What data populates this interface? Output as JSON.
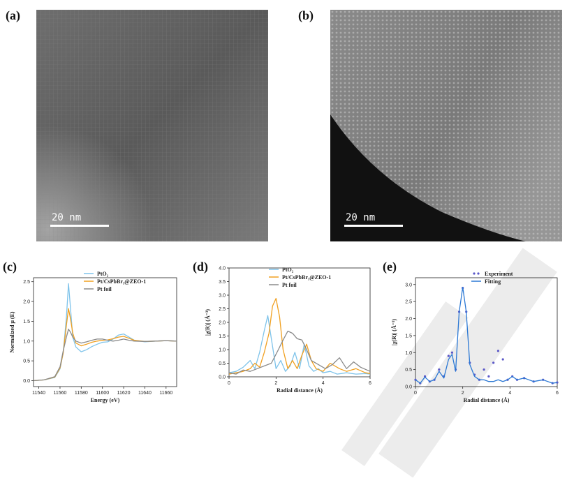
{
  "panels": {
    "a": {
      "label": "(a)",
      "scalebar": "20 nm"
    },
    "b": {
      "label": "(b)",
      "scalebar": "20 nm"
    },
    "c": {
      "label": "(c)"
    },
    "d": {
      "label": "(d)"
    },
    "e": {
      "label": "(e)"
    }
  },
  "colors": {
    "pto2": "#7ec3ea",
    "sample": "#f0a020",
    "foil": "#8a8a8a",
    "experiment": "#5b58c8",
    "fitting": "#2b78d4"
  },
  "chart_data": [
    {
      "type": "line",
      "xlabel": "Energy (eV)",
      "ylabel": "Normalized μ (E)",
      "xlim": [
        11535,
        11670
      ],
      "ylim": [
        -0.15,
        2.6
      ],
      "xticks": [
        11540,
        11560,
        11580,
        11600,
        11620,
        11640,
        11660
      ],
      "yticks": [
        0.0,
        0.5,
        1.0,
        1.5,
        2.0,
        2.5
      ],
      "xtick_labels": [
        "11540",
        "11560",
        "11580",
        "11600",
        "11620",
        "11640",
        "11660"
      ],
      "ytick_labels": [
        "0.0",
        "0.5",
        "1.0",
        "1.5",
        "2.0",
        "2.5"
      ],
      "legend": [
        "PtO₂",
        "Pt/CsPbBr₃@ZEO-1",
        "Pt foil"
      ],
      "legend_position": "top-right",
      "series": [
        {
          "name": "PtO₂",
          "x": [
            11535,
            11545,
            11555,
            11560,
            11563,
            11566,
            11568,
            11570,
            11572,
            11575,
            11580,
            11585,
            11590,
            11595,
            11600,
            11605,
            11610,
            11615,
            11620,
            11625,
            11630,
            11640,
            11650,
            11660,
            11670
          ],
          "y": [
            0.0,
            0.02,
            0.08,
            0.3,
            0.7,
            1.6,
            2.45,
            1.8,
            1.1,
            0.85,
            0.73,
            0.78,
            0.86,
            0.92,
            0.97,
            0.98,
            1.05,
            1.15,
            1.18,
            1.1,
            1.02,
            0.98,
            1.0,
            1.01,
            1.0
          ]
        },
        {
          "name": "Pt/CsPbBr₃@ZEO-1",
          "x": [
            11535,
            11545,
            11555,
            11560,
            11563,
            11566,
            11568,
            11570,
            11572,
            11575,
            11580,
            11585,
            11590,
            11595,
            11600,
            11605,
            11610,
            11615,
            11620,
            11625,
            11630,
            11640,
            11650,
            11660,
            11670
          ],
          "y": [
            0.0,
            0.02,
            0.09,
            0.32,
            0.7,
            1.4,
            1.82,
            1.55,
            1.2,
            0.95,
            0.88,
            0.92,
            0.97,
            1.0,
            1.02,
            1.03,
            1.06,
            1.1,
            1.12,
            1.07,
            1.02,
            0.99,
            1.0,
            1.01,
            1.0
          ]
        },
        {
          "name": "Pt foil",
          "x": [
            11535,
            11545,
            11555,
            11560,
            11563,
            11566,
            11568,
            11570,
            11572,
            11575,
            11580,
            11585,
            11590,
            11595,
            11600,
            11605,
            11610,
            11615,
            11620,
            11625,
            11630,
            11640,
            11650,
            11660,
            11670
          ],
          "y": [
            0.0,
            0.02,
            0.1,
            0.35,
            0.75,
            1.1,
            1.3,
            1.22,
            1.1,
            1.0,
            0.95,
            0.98,
            1.02,
            1.05,
            1.05,
            1.02,
            1.0,
            1.02,
            1.05,
            1.02,
            1.0,
            0.99,
            1.0,
            1.01,
            1.0
          ]
        }
      ]
    },
    {
      "type": "line",
      "xlabel": "Radial distance (Å)",
      "ylabel": "|χ(R)| (Å⁻³)",
      "xlim": [
        0,
        6
      ],
      "ylim": [
        0,
        4.0
      ],
      "xticks": [
        0,
        2,
        4,
        6
      ],
      "yticks": [
        0.0,
        0.5,
        1.0,
        1.5,
        2.0,
        2.5,
        3.0,
        3.5,
        4.0
      ],
      "xtick_labels": [
        "0",
        "2",
        "4",
        "6"
      ],
      "ytick_labels": [
        "0.0",
        "0.5",
        "1.0",
        "1.5",
        "2.0",
        "2.5",
        "3.0",
        "3.5",
        "4.0"
      ],
      "legend": [
        "PtO₂",
        "Pt/CsPbBr₃@ZEO-1",
        "Pt foil"
      ],
      "legend_position": "top-right",
      "series": [
        {
          "name": "PtO₂",
          "x": [
            0,
            0.3,
            0.6,
            0.9,
            1.1,
            1.3,
            1.5,
            1.65,
            1.8,
            2.0,
            2.2,
            2.4,
            2.6,
            2.8,
            3.0,
            3.2,
            3.4,
            3.6,
            3.8,
            4.0,
            4.3,
            4.6,
            5.0,
            5.4,
            5.8,
            6.0
          ],
          "y": [
            0.15,
            0.2,
            0.35,
            0.6,
            0.3,
            0.9,
            1.7,
            2.25,
            1.4,
            0.3,
            0.6,
            0.2,
            0.4,
            0.9,
            0.3,
            1.2,
            0.4,
            0.2,
            0.3,
            0.15,
            0.2,
            0.1,
            0.15,
            0.1,
            0.12,
            0.1
          ]
        },
        {
          "name": "Pt/CsPbBr₃@ZEO-1",
          "x": [
            0,
            0.3,
            0.6,
            0.9,
            1.1,
            1.3,
            1.5,
            1.7,
            1.85,
            2.0,
            2.15,
            2.3,
            2.5,
            2.7,
            2.9,
            3.1,
            3.3,
            3.5,
            3.7,
            4.0,
            4.3,
            4.7,
            5.0,
            5.4,
            5.8,
            6.0
          ],
          "y": [
            0.1,
            0.15,
            0.2,
            0.3,
            0.5,
            0.35,
            0.9,
            1.6,
            2.6,
            2.88,
            2.2,
            1.0,
            0.3,
            0.6,
            0.3,
            0.8,
            1.2,
            0.6,
            0.3,
            0.2,
            0.5,
            0.3,
            0.2,
            0.3,
            0.15,
            0.12
          ]
        },
        {
          "name": "Pt foil",
          "x": [
            0,
            0.3,
            0.6,
            0.9,
            1.2,
            1.5,
            1.8,
            2.1,
            2.3,
            2.5,
            2.7,
            2.9,
            3.1,
            3.3,
            3.5,
            3.8,
            4.1,
            4.4,
            4.7,
            5.0,
            5.3,
            5.6,
            6.0
          ],
          "y": [
            0.15,
            0.1,
            0.25,
            0.2,
            0.3,
            0.4,
            0.5,
            1.0,
            1.35,
            1.68,
            1.6,
            1.4,
            1.35,
            1.0,
            0.6,
            0.45,
            0.3,
            0.45,
            0.7,
            0.3,
            0.55,
            0.35,
            0.2
          ]
        }
      ]
    },
    {
      "type": "line",
      "xlabel": "Radial distance (Å)",
      "ylabel": "|χ(R)| (Å⁻³)",
      "xlim": [
        0,
        6
      ],
      "ylim": [
        0,
        3.2
      ],
      "xticks": [
        0,
        2,
        4,
        6
      ],
      "yticks": [
        0.0,
        0.5,
        1.0,
        1.5,
        2.0,
        2.5,
        3.0
      ],
      "xtick_labels": [
        "0",
        "2",
        "4",
        "6"
      ],
      "ytick_labels": [
        "0.0",
        "0.5",
        "1.0",
        "1.5",
        "2.0",
        "2.5",
        "3.0"
      ],
      "legend": [
        "Experiment",
        "Fitting"
      ],
      "legend_position": "top-right",
      "series": [
        {
          "name": "Experiment",
          "x": [
            0,
            0.2,
            0.4,
            0.6,
            0.8,
            1.0,
            1.2,
            1.4,
            1.55,
            1.7,
            1.85,
            2.0,
            2.15,
            2.3,
            2.5,
            2.7,
            2.9,
            3.1,
            3.3,
            3.5,
            3.7,
            3.9,
            4.1,
            4.3,
            4.6,
            5.0,
            5.4,
            5.8,
            6.0
          ],
          "y": [
            0.2,
            0.1,
            0.3,
            0.15,
            0.2,
            0.5,
            0.3,
            0.9,
            1.0,
            0.5,
            2.2,
            2.9,
            2.2,
            0.7,
            0.35,
            0.2,
            0.5,
            0.3,
            0.7,
            1.05,
            0.8,
            0.2,
            0.3,
            0.2,
            0.25,
            0.15,
            0.2,
            0.1,
            0.12
          ]
        },
        {
          "name": "Fitting",
          "x": [
            0,
            0.2,
            0.4,
            0.6,
            0.8,
            1.0,
            1.2,
            1.4,
            1.55,
            1.7,
            1.85,
            2.0,
            2.15,
            2.3,
            2.5,
            2.7,
            2.9,
            3.1,
            3.3,
            3.5,
            3.7,
            3.9,
            4.1,
            4.3,
            4.6,
            5.0,
            5.4,
            5.8,
            6.0
          ],
          "y": [
            0.2,
            0.1,
            0.28,
            0.15,
            0.2,
            0.45,
            0.25,
            0.8,
            0.95,
            0.45,
            2.2,
            2.92,
            2.2,
            0.65,
            0.3,
            0.2,
            0.2,
            0.15,
            0.15,
            0.2,
            0.15,
            0.2,
            0.3,
            0.2,
            0.25,
            0.15,
            0.2,
            0.1,
            0.12
          ]
        }
      ]
    }
  ]
}
